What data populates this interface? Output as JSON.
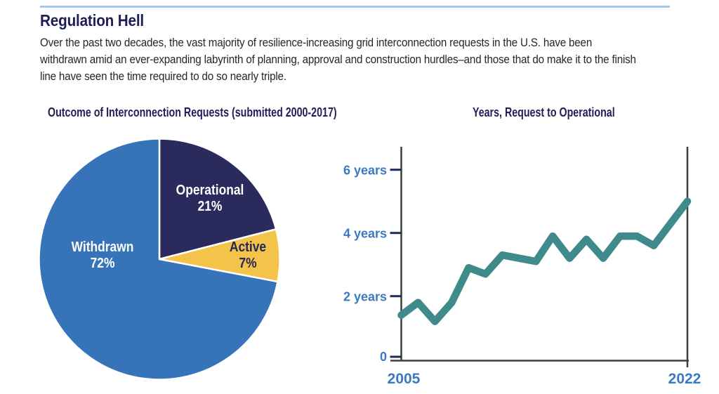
{
  "page": {
    "title": "Regulation Hell",
    "description_lines": [
      "Over the past two decades, the vast majority of resilience-increasing grid interconnection requests in the U.S. have been",
      "withdrawn amid an ever-expanding labyrinth of planning, approval and construction hurdles–and those that do make it to the finish",
      "line have seen the time required to do so nearly triple."
    ],
    "accent_rule_color": "#A6C8E8",
    "title_color": "#1D1E56"
  },
  "chart_data": [
    {
      "type": "pie",
      "title": "Outcome of Interconnection Requests (submitted 2000-2017)",
      "start_angle_deg": -90,
      "direction": "clockwise",
      "slices": [
        {
          "label": "Operational",
          "pct_label": "21%",
          "value": 21,
          "color": "#2A2A5C",
          "label_color": "#FFFFFF"
        },
        {
          "label": "Active",
          "pct_label": "7%",
          "value": 7,
          "color": "#F3C34A",
          "label_color": "#26265A"
        },
        {
          "label": "Withdrawn",
          "pct_label": "72%",
          "value": 72,
          "color": "#3773B9",
          "label_color": "#FFFFFF"
        }
      ]
    },
    {
      "type": "line",
      "title": "Years, Request to Operational",
      "x": [
        2005,
        2006,
        2007,
        2008,
        2009,
        2010,
        2011,
        2012,
        2013,
        2014,
        2015,
        2016,
        2017,
        2018,
        2019,
        2020,
        2021,
        2022
      ],
      "y": [
        1.4,
        1.8,
        1.2,
        1.8,
        2.9,
        2.7,
        3.3,
        3.2,
        3.1,
        3.9,
        3.2,
        3.8,
        3.2,
        3.9,
        3.9,
        3.6,
        4.3,
        5.0
      ],
      "xlabel": "",
      "ylabel": "",
      "ylim": [
        0,
        6.9
      ],
      "grid": false,
      "y_axis_labels": [
        "6 years",
        "4 years",
        "2 years",
        "0"
      ],
      "x_axis_labels": [
        "2005",
        "2022"
      ],
      "line_color": "#3F8A8B",
      "axis_color": "#3F3F3F",
      "tick_color": "#1F2A5E",
      "tick_label_color": "#3B79C0"
    }
  ]
}
